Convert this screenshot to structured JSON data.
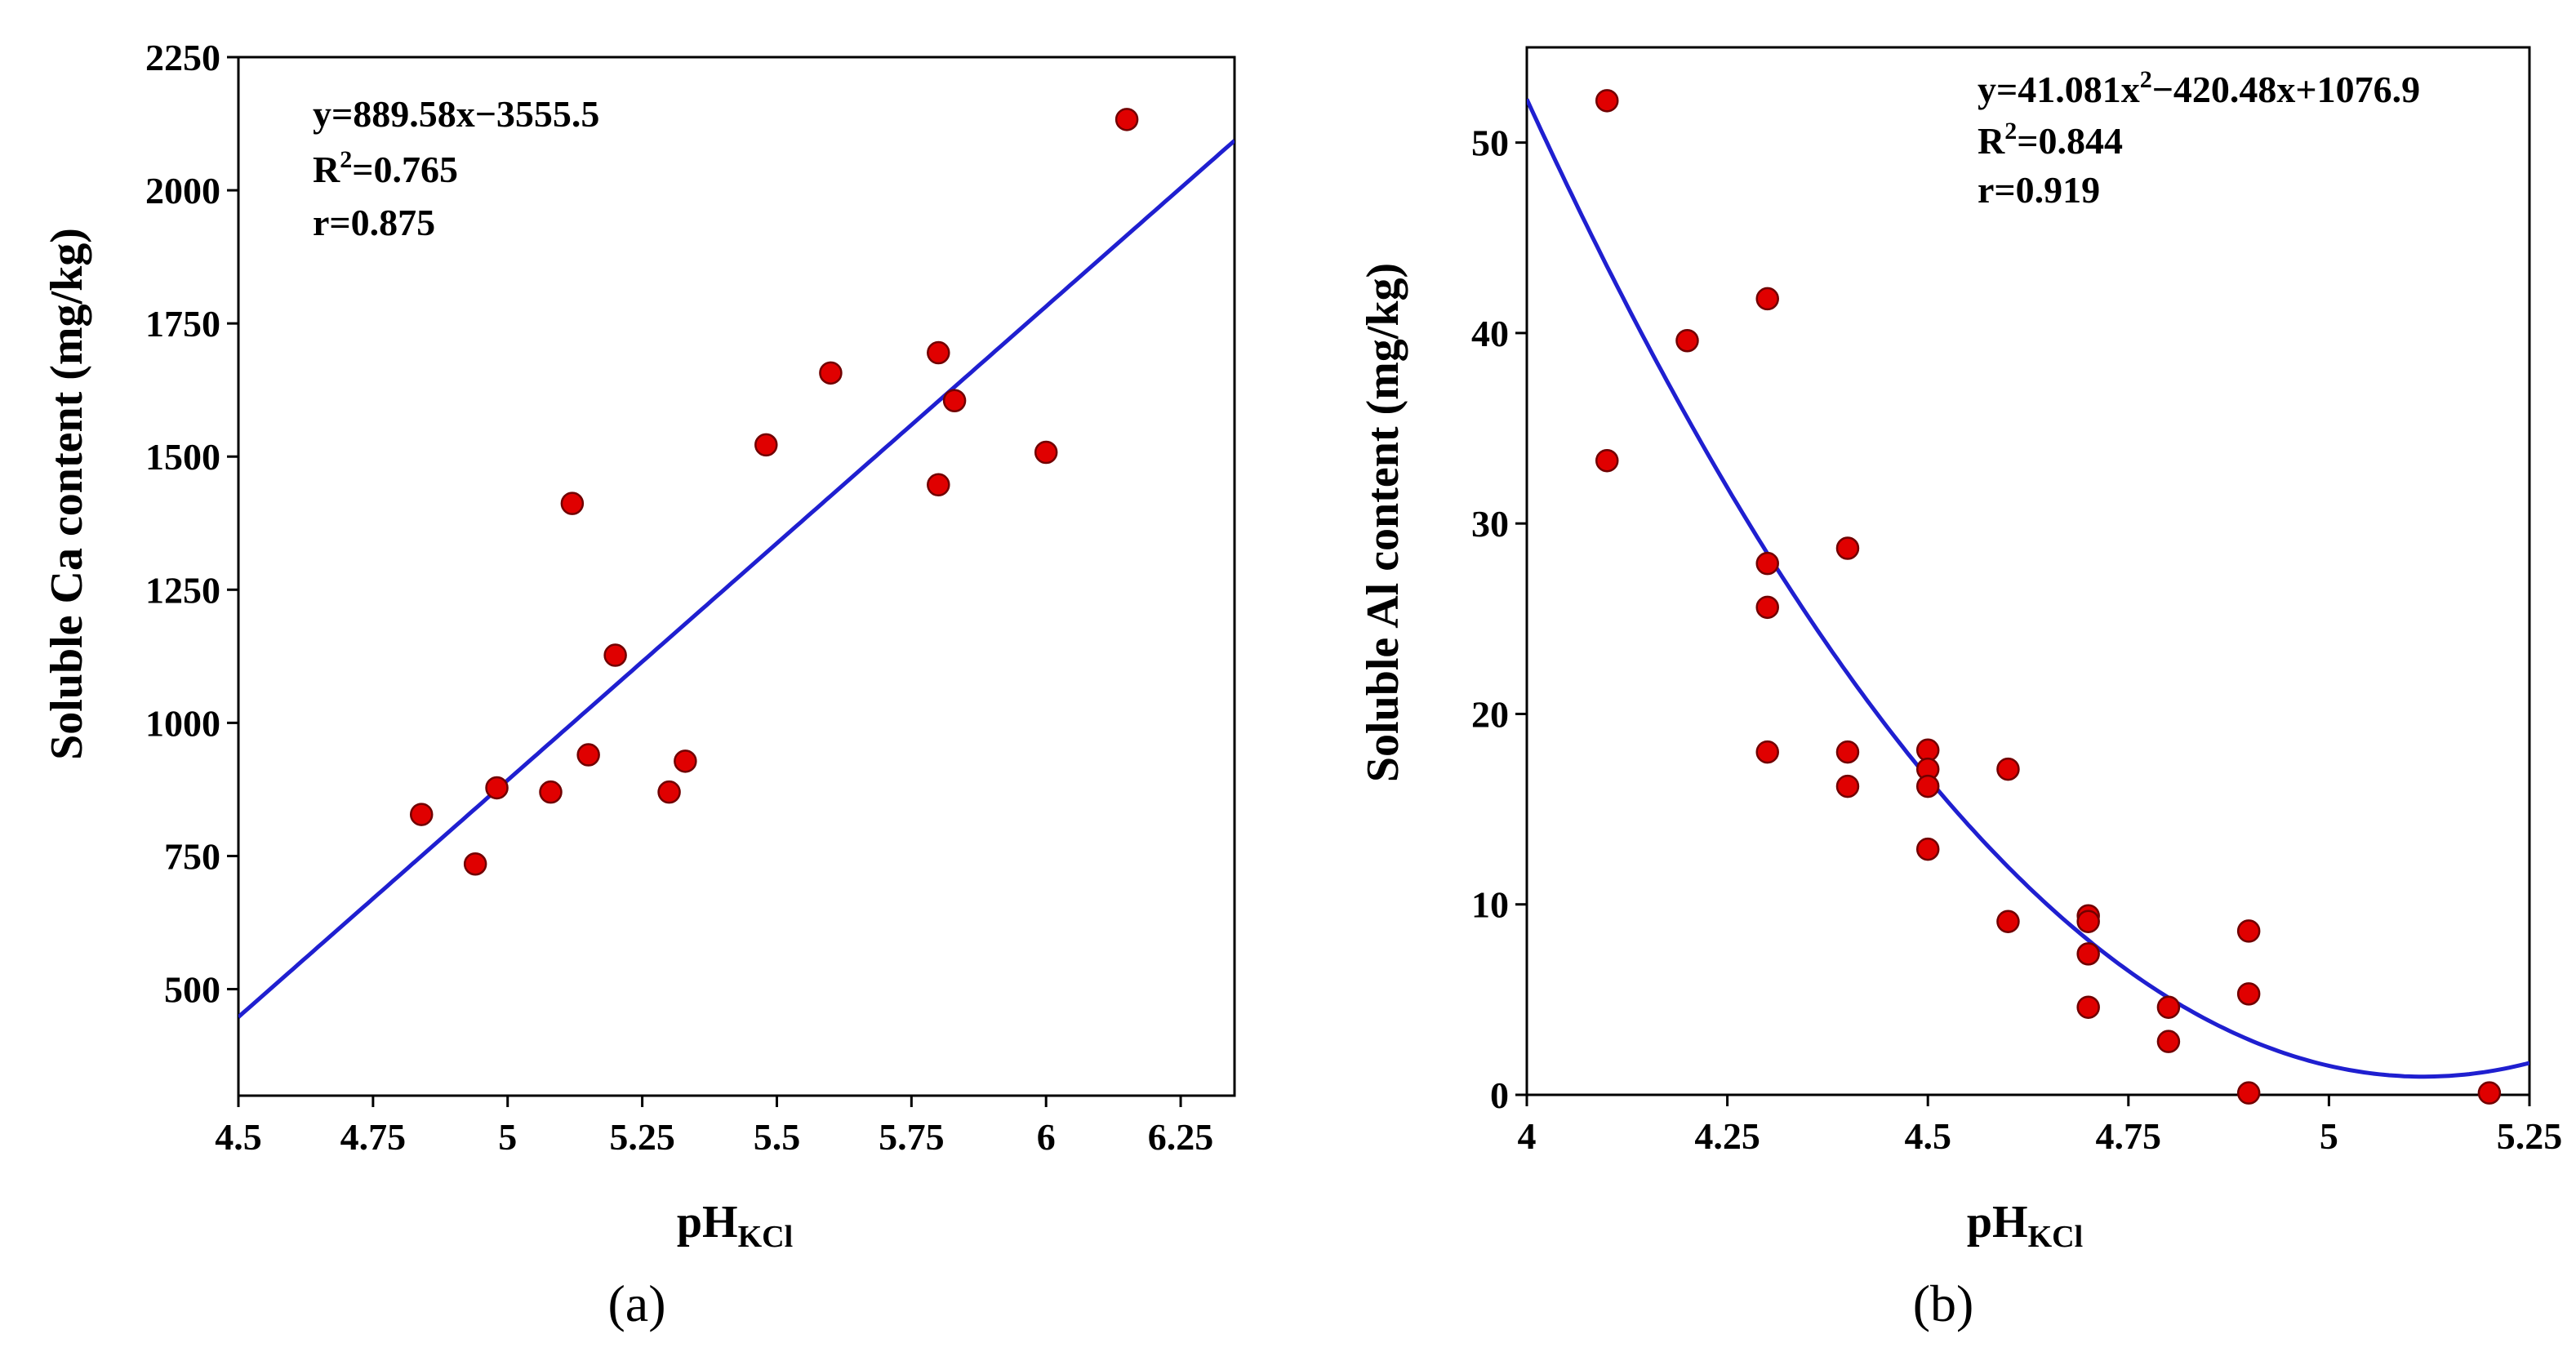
{
  "chart_data": [
    {
      "id": "a",
      "type": "scatter",
      "panel_label": "(a)",
      "xlabel": "pH",
      "xlabel_sub": "KCl",
      "ylabel": "Soluble Ca content (mg/kg)",
      "xlim": [
        4.5,
        6.35
      ],
      "ylim": [
        300,
        2250
      ],
      "xticks": [
        4.5,
        4.75,
        5,
        5.25,
        5.5,
        5.75,
        6,
        6.25
      ],
      "xtick_labels": [
        "4.5",
        "4.75",
        "5",
        "5.25",
        "5.5",
        "5.75",
        "6",
        "6.25"
      ],
      "yticks": [
        500,
        750,
        1000,
        1250,
        1500,
        1750,
        2000,
        2250
      ],
      "ytick_labels": [
        "500",
        "750",
        "1000",
        "1250",
        "1500",
        "1750",
        "2000",
        "2250"
      ],
      "points": [
        [
          4.84,
          828
        ],
        [
          4.94,
          735
        ],
        [
          4.98,
          878
        ],
        [
          5.08,
          870
        ],
        [
          5.12,
          1412
        ],
        [
          5.15,
          940
        ],
        [
          5.2,
          1127
        ],
        [
          5.3,
          870
        ],
        [
          5.33,
          928
        ],
        [
          5.48,
          1522
        ],
        [
          5.6,
          1657
        ],
        [
          5.8,
          1695
        ],
        [
          5.8,
          1447
        ],
        [
          5.83,
          1605
        ],
        [
          6.0,
          1508
        ],
        [
          6.15,
          2133
        ]
      ],
      "fit": {
        "kind": "linear",
        "coef": [
          889.58,
          -3555.5
        ]
      },
      "annotations": [
        {
          "id": "equation",
          "parts": [
            "y=889.58x−3555.5"
          ]
        },
        {
          "id": "r2",
          "parts": [
            "R",
            "2",
            "=0.765"
          ]
        },
        {
          "id": "r",
          "parts": [
            "r=0.875"
          ]
        }
      ]
    },
    {
      "id": "b",
      "type": "scatter",
      "panel_label": "(b)",
      "xlabel": "pH",
      "xlabel_sub": "KCl",
      "ylabel": "Soluble Al content (mg/kg)",
      "xlim": [
        4.0,
        5.25
      ],
      "ylim": [
        0,
        55
      ],
      "xticks": [
        4,
        4.25,
        4.5,
        4.75,
        5,
        5.25
      ],
      "xtick_labels": [
        "4",
        "4.25",
        "4.5",
        "4.75",
        "5",
        "5.25"
      ],
      "yticks": [
        0,
        10,
        20,
        30,
        40,
        50
      ],
      "ytick_labels": [
        "0",
        "10",
        "20",
        "30",
        "40",
        "50"
      ],
      "points": [
        [
          4.1,
          52.2
        ],
        [
          4.1,
          33.3
        ],
        [
          4.2,
          39.6
        ],
        [
          4.3,
          41.8
        ],
        [
          4.3,
          27.9
        ],
        [
          4.3,
          25.6
        ],
        [
          4.3,
          18.0
        ],
        [
          4.4,
          28.7
        ],
        [
          4.4,
          18.0
        ],
        [
          4.4,
          16.2
        ],
        [
          4.5,
          18.1
        ],
        [
          4.5,
          17.1
        ],
        [
          4.5,
          16.2
        ],
        [
          4.5,
          12.9
        ],
        [
          4.6,
          17.1
        ],
        [
          4.6,
          9.1
        ],
        [
          4.7,
          9.4
        ],
        [
          4.7,
          9.1
        ],
        [
          4.7,
          7.4
        ],
        [
          4.7,
          4.6
        ],
        [
          4.8,
          4.6
        ],
        [
          4.8,
          2.8
        ],
        [
          4.9,
          8.6
        ],
        [
          4.9,
          5.3
        ],
        [
          4.9,
          0.1
        ],
        [
          5.2,
          0.1
        ]
      ],
      "fit": {
        "kind": "quadratic",
        "coef": [
          41.081,
          -420.48,
          1076.9
        ]
      },
      "annotations": [
        {
          "id": "equation",
          "parts": [
            "y=41.081x",
            "2",
            "−420.48x+1076.9"
          ]
        },
        {
          "id": "r2",
          "parts": [
            "R",
            "2",
            "=0.844"
          ]
        },
        {
          "id": "r",
          "parts": [
            "r=0.919"
          ]
        }
      ]
    }
  ]
}
